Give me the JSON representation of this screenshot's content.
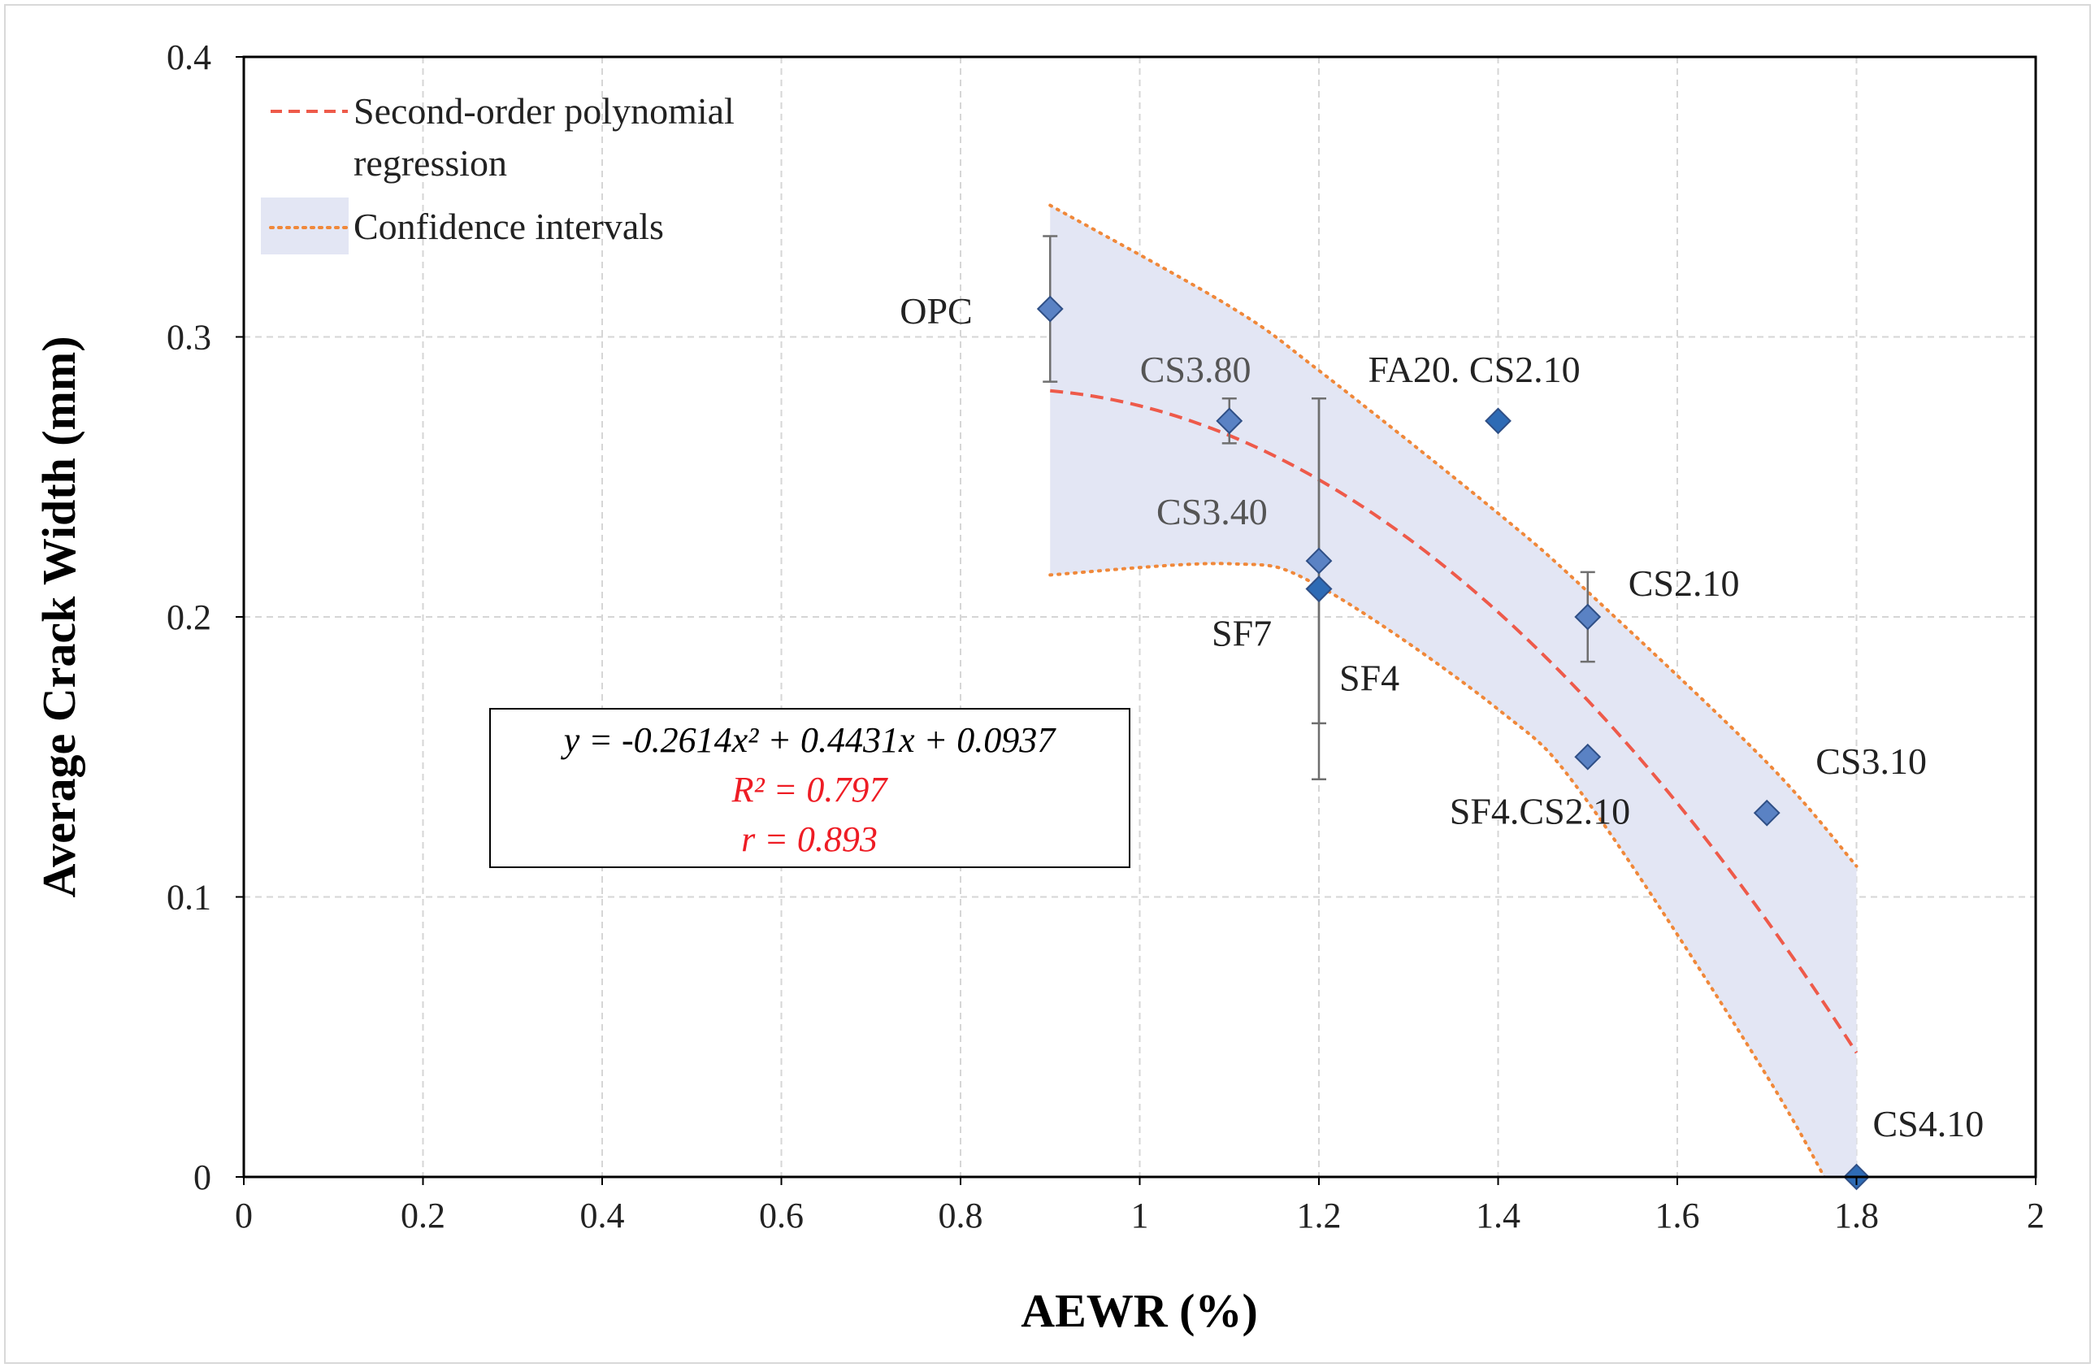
{
  "chart_data": {
    "type": "scatter",
    "title": "",
    "xlabel": "AEWR (%)",
    "ylabel": "Average Crack Width (mm)",
    "xlim": [
      0,
      2
    ],
    "ylim": [
      0,
      0.4
    ],
    "x_ticks": [
      0,
      0.2,
      0.4,
      0.6,
      0.8,
      1,
      1.2,
      1.4,
      1.6,
      1.8,
      2
    ],
    "x_tick_labels": [
      "0",
      "0.2",
      "0.4",
      "0.6",
      "0.8",
      "1",
      "1.2",
      "1.4",
      "1.6",
      "1.8",
      "2"
    ],
    "y_ticks": [
      0,
      0.1,
      0.2,
      0.3,
      0.4
    ],
    "y_tick_labels": [
      "0",
      "0.1",
      "0.2",
      "0.3",
      "0.4"
    ],
    "grid": true,
    "points": [
      {
        "label": "OPC",
        "x": 0.9,
        "y": 0.31,
        "err": 0.026
      },
      {
        "label": "CS3.80",
        "x": 1.1,
        "y": 0.27,
        "err": 0.008
      },
      {
        "label": "FA20. CS2.10",
        "x": 1.4,
        "y": 0.27,
        "err": 0
      },
      {
        "label": "CS3.40",
        "x": 1.2,
        "y": 0.22,
        "err": 0.058
      },
      {
        "label": "SF7",
        "x": 1.2,
        "y": 0.21,
        "err": 0
      },
      {
        "label": "SF4",
        "x": 1.2,
        "y": 0.21,
        "err": 0.068
      },
      {
        "label": "CS2.10",
        "x": 1.5,
        "y": 0.2,
        "err": 0.016
      },
      {
        "label": "SF4.CS2.10",
        "x": 1.5,
        "y": 0.15,
        "err": 0
      },
      {
        "label": "CS3.10",
        "x": 1.7,
        "y": 0.13,
        "err": 0
      },
      {
        "label": "CS4.10",
        "x": 1.8,
        "y": 0.0,
        "err": 0
      }
    ],
    "regression": {
      "name": "Second-order polynomial regression",
      "coefficients": {
        "a": -0.2614,
        "b": 0.4431,
        "c": 0.0937
      },
      "x_range": [
        0.9,
        1.8
      ]
    },
    "confidence_band": {
      "name": "Confidence intervals",
      "upper": {
        "x": [
          0.9,
          1.1,
          1.2,
          1.4,
          1.5,
          1.7,
          1.8
        ],
        "y": [
          0.347,
          0.311,
          0.288,
          0.237,
          0.209,
          0.148,
          0.111
        ]
      },
      "lower": {
        "x": [
          0.9,
          1.1,
          1.2,
          1.4,
          1.5,
          1.7,
          1.8
        ],
        "y": [
          0.215,
          0.219,
          0.211,
          0.167,
          0.134,
          0.036,
          -0.022
        ]
      }
    },
    "legend": {
      "position": "top-left",
      "entries": [
        "Second-order polynomial",
        "regression",
        "Confidence intervals"
      ]
    },
    "annotation": {
      "equation": "y = -0.2614x² + 0.4431x + 0.0937",
      "r_squared": "R² = 0.797",
      "r": "r = 0.893"
    },
    "colors": {
      "marker": "#5a82c4",
      "marker_stroke": "#2f4f86",
      "marker_dark": "#2e6bb5",
      "regression": "#ee5a4a",
      "confidence": "#f0883a",
      "band_fill": "#e3e6f4",
      "error_bar": "#6f6f6f",
      "grid": "#d6d6d6",
      "red_text": "#ee1c24"
    }
  }
}
